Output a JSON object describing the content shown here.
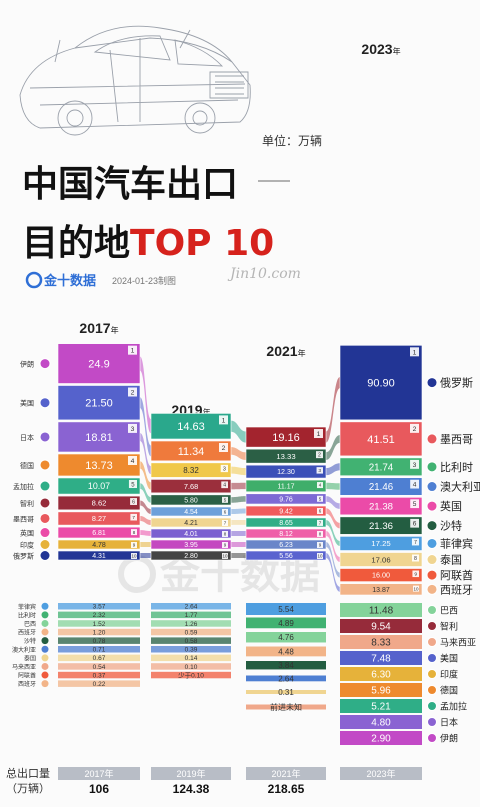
{
  "header": {
    "title_line1": "中国汽车出口",
    "title_line2a": "目的地",
    "title_line2b": "TOP 10",
    "unit": "单位：万辆",
    "brand": "金十数据",
    "date": "2024-01-23制图",
    "signature": "Jin10.com"
  },
  "footer": {
    "label_line1": "总出口量",
    "label_line2": "（万辆）"
  },
  "chart_data": {
    "type": "bar",
    "title": "中国汽车出口目的地TOP 10",
    "unit": "单位：万辆",
    "columns": [
      {
        "year": "2017",
        "year_suffix": "年",
        "total": "106",
        "top10": [
          {
            "rank": "1",
            "country": "伊朗",
            "value": "24.9"
          },
          {
            "rank": "2",
            "country": "美国",
            "value": "21.50"
          },
          {
            "rank": "3",
            "country": "日本",
            "value": "18.81"
          },
          {
            "rank": "4",
            "country": "德国",
            "value": "13.73"
          },
          {
            "rank": "5",
            "country": "孟加拉",
            "value": "10.07"
          },
          {
            "rank": "6",
            "country": "智利",
            "value": "8.62"
          },
          {
            "rank": "7",
            "country": "墨西哥",
            "value": "8.27"
          },
          {
            "rank": "8",
            "country": "英国",
            "value": "6.81"
          },
          {
            "rank": "9",
            "country": "印度",
            "value": "4.78"
          },
          {
            "rank": "10",
            "country": "俄罗斯",
            "value": "4.31"
          }
        ],
        "lower": [
          {
            "country": "菲律宾",
            "value": "3.57"
          },
          {
            "country": "比利时",
            "value": "2.32"
          },
          {
            "country": "巴西",
            "value": "1.52"
          },
          {
            "country": "西班牙",
            "value": "1.20"
          },
          {
            "country": "沙特",
            "value": "0.78"
          },
          {
            "country": "澳大利亚",
            "value": "0.71"
          },
          {
            "country": "泰国",
            "value": "0.67"
          },
          {
            "country": "马来西亚",
            "value": "0.54"
          },
          {
            "country": "阿联酋",
            "value": "0.37"
          },
          {
            "country": "西班牙",
            "value": "0.22"
          }
        ]
      },
      {
        "year": "2019",
        "year_suffix": "年",
        "total": "124.38",
        "top10": [
          {
            "rank": "1",
            "value": "14.63"
          },
          {
            "rank": "2",
            "value": "11.34"
          },
          {
            "rank": "3",
            "value": "8.32"
          },
          {
            "rank": "4",
            "value": "7.68"
          },
          {
            "rank": "5",
            "value": "5.80"
          },
          {
            "rank": "6",
            "value": "4.54"
          },
          {
            "rank": "7",
            "value": "4.21"
          },
          {
            "rank": "8",
            "value": "4.01"
          },
          {
            "rank": "9",
            "value": "3.95"
          },
          {
            "rank": "10",
            "value": "2.80"
          }
        ],
        "lower": [
          {
            "value": "2.64"
          },
          {
            "value": "1.77"
          },
          {
            "value": "1.26"
          },
          {
            "value": "0.59"
          },
          {
            "value": "0.58"
          },
          {
            "value": "0.39"
          },
          {
            "value": "0.14"
          },
          {
            "value": "0.10"
          },
          {
            "value": "少于0.10"
          }
        ]
      },
      {
        "year": "2021",
        "year_suffix": "年",
        "total": "218.65",
        "top10": [
          {
            "rank": "1",
            "value": "19.16"
          },
          {
            "rank": "2",
            "value": "13.33"
          },
          {
            "rank": "3",
            "value": "12.30"
          },
          {
            "rank": "4",
            "value": "11.17"
          },
          {
            "rank": "5",
            "value": "9.76"
          },
          {
            "rank": "6",
            "value": "9.42"
          },
          {
            "rank": "7",
            "value": "8.65"
          },
          {
            "rank": "8",
            "value": "8.12"
          },
          {
            "rank": "9",
            "value": "6.23"
          },
          {
            "rank": "10",
            "value": "5.56"
          }
        ],
        "lower": [
          {
            "value": "5.54"
          },
          {
            "value": "4.89"
          },
          {
            "value": "4.76"
          },
          {
            "value": "4.48"
          },
          {
            "value": "3.84"
          },
          {
            "value": "2.64"
          },
          {
            "value": "0.31"
          },
          {
            "value": "前进未知"
          }
        ]
      },
      {
        "year": "2023",
        "year_suffix": "年",
        "total": "",
        "top10": [
          {
            "rank": "1",
            "country": "俄罗斯",
            "value": "90.90"
          },
          {
            "rank": "2",
            "country": "墨西哥",
            "value": "41.51"
          },
          {
            "rank": "3",
            "country": "比利时",
            "value": "21.74"
          },
          {
            "rank": "4",
            "country": "澳大利亚",
            "value": "21.46"
          },
          {
            "rank": "5",
            "country": "英国",
            "value": "21.38"
          },
          {
            "rank": "6",
            "country": "沙特",
            "value": "21.36"
          },
          {
            "rank": "7",
            "country": "菲律宾",
            "value": "17.25"
          },
          {
            "rank": "8",
            "country": "泰国",
            "value": "17.06"
          },
          {
            "rank": "9",
            "country": "阿联酋",
            "value": "16.00"
          },
          {
            "rank": "10",
            "country": "西班牙",
            "value": "13.87"
          }
        ],
        "lower": [
          {
            "country": "巴西",
            "value": "11.48"
          },
          {
            "country": "智利",
            "value": "9.54"
          },
          {
            "country": "马来西亚",
            "value": "8.33"
          },
          {
            "country": "美国",
            "value": "7.48"
          },
          {
            "country": "印度",
            "value": "6.30"
          },
          {
            "country": "德国",
            "value": "5.96"
          },
          {
            "country": "孟加拉",
            "value": "5.21"
          },
          {
            "country": "日本",
            "value": "4.80"
          },
          {
            "country": "伊朗",
            "value": "2.90"
          }
        ]
      }
    ],
    "colors": {
      "伊朗": "#c24ac6",
      "美国": "#5562cc",
      "日本": "#8a63d2",
      "德国": "#ee8a2e",
      "孟加拉": "#2fae87",
      "智利": "#962b3a",
      "墨西哥": "#e8595d",
      "英国": "#eb4ba8",
      "印度": "#e6b23a",
      "俄罗斯": "#223595",
      "澳大利亚": "#4e7fd2",
      "比利时": "#41b272",
      "沙特": "#235d41",
      "菲律宾": "#4e9ee0",
      "泰国": "#f0d591",
      "阿联酋": "#f05a3c",
      "西班牙": "#f2b488",
      "巴西": "#84d39a",
      "马来西亚": "#f0a88a",
      "neutral": "#8c8c9c"
    }
  }
}
